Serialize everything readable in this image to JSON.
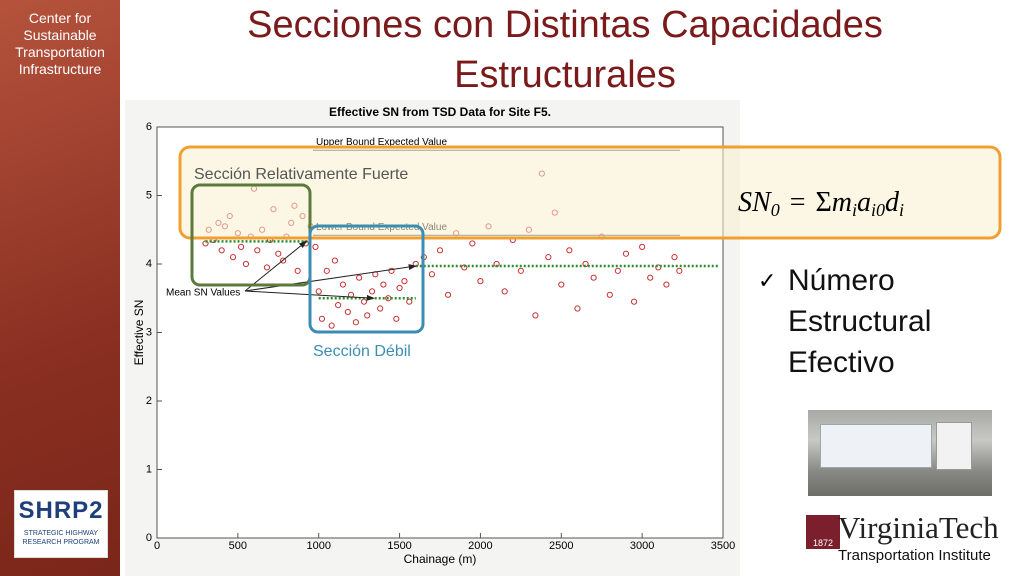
{
  "slide": {
    "title_lines": [
      "Secciones con Distintas Capacidades",
      "Estructurales"
    ],
    "sidebar": "Center for Sustainable Transportation Infrastructure",
    "shrp2": {
      "logo": "SHRP2",
      "caption": "STRATEGIC HIGHWAY RESEARCH PROGRAM"
    },
    "strong_label": "Sección Relativamente Fuerte",
    "weak_label": "Sección Débil",
    "formula": [
      "SN",
      "0",
      "=",
      "Σ",
      "m",
      "i",
      "a",
      "i0",
      "d",
      "i"
    ],
    "bullet": "Número Estructural Efectivo",
    "vt": {
      "name": "VirginiaTech",
      "year": "1872",
      "sub": "Transportation Institute"
    }
  },
  "chart_data": {
    "type": "scatter",
    "title": "Effective SN from TSD Data for Site F5.",
    "x_label": "Chainage (m)",
    "y_label": "Effective SN",
    "xlim": [
      0,
      3500
    ],
    "xticks": [
      0,
      500,
      1000,
      1500,
      2000,
      2500,
      3000,
      3500
    ],
    "ylim": [
      0,
      6
    ],
    "yticks": [
      0,
      1,
      2,
      3,
      4,
      5,
      6
    ],
    "color": "#c83232",
    "x": [
      300,
      320,
      350,
      380,
      400,
      420,
      450,
      470,
      500,
      520,
      550,
      580,
      600,
      620,
      650,
      680,
      700,
      720,
      750,
      780,
      800,
      830,
      850,
      870,
      900,
      920,
      950,
      980,
      1000,
      1020,
      1050,
      1080,
      1100,
      1120,
      1150,
      1180,
      1200,
      1230,
      1250,
      1280,
      1300,
      1330,
      1350,
      1380,
      1400,
      1430,
      1450,
      1480,
      1500,
      1530,
      1560,
      1600,
      1650,
      1700,
      1750,
      1800,
      1850,
      1900,
      1950,
      2000,
      2050,
      2100,
      2150,
      2200,
      2250,
      2300,
      2340,
      2380,
      2420,
      2460,
      2500,
      2550,
      2600,
      2650,
      2700,
      2750,
      2800,
      2850,
      2900,
      2950,
      3000,
      3050,
      3100,
      3150,
      3200,
      3230
    ],
    "values": [
      4.3,
      4.5,
      4.35,
      4.6,
      4.2,
      4.55,
      4.7,
      4.1,
      4.45,
      4.25,
      4.0,
      4.4,
      5.1,
      4.2,
      4.5,
      3.95,
      4.35,
      4.8,
      4.15,
      4.05,
      4.4,
      4.6,
      4.85,
      3.9,
      4.7,
      4.3,
      4.55,
      4.25,
      3.6,
      3.2,
      3.9,
      3.1,
      4.05,
      3.4,
      3.7,
      3.3,
      3.55,
      3.15,
      3.8,
      3.45,
      3.25,
      3.6,
      3.85,
      3.35,
      3.7,
      3.5,
      3.9,
      3.2,
      3.65,
      3.75,
      3.45,
      4.0,
      4.1,
      3.85,
      4.2,
      3.55,
      4.45,
      3.95,
      4.3,
      3.75,
      4.55,
      4.0,
      3.6,
      4.35,
      3.9,
      4.5,
      3.25,
      5.32,
      4.1,
      4.75,
      3.7,
      4.2,
      3.35,
      4.0,
      3.8,
      4.4,
      3.55,
      3.9,
      4.15,
      3.45,
      4.25,
      3.8,
      3.95,
      3.7,
      4.1,
      3.9
    ],
    "bounds": [
      {
        "text": "Upper Bound Expected Value",
        "value": 5.66
      },
      {
        "text": "Lower Bound Expected Value",
        "value": 4.42
      }
    ],
    "mean_label": "Mean SN Values",
    "mean_color": "#2e8b2e",
    "mean_lines": [
      {
        "x": [
          300,
          960
        ],
        "value": 4.33
      },
      {
        "x": [
          1000,
          1600
        ],
        "value": 3.5
      },
      {
        "x": [
          1600,
          3480
        ],
        "value": 3.97
      }
    ]
  }
}
